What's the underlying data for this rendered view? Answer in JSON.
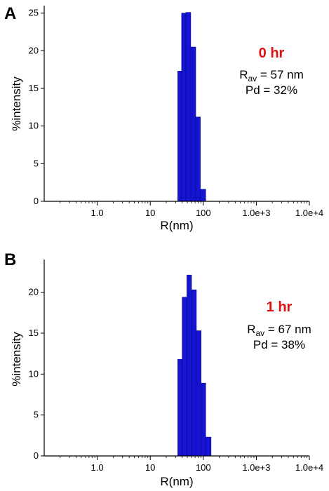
{
  "chart_data": [
    {
      "type": "bar",
      "panel_label": "A",
      "xlabel": "R(nm)",
      "ylabel": "%intensity",
      "x_scale": "log",
      "xlim": [
        0.1,
        10000
      ],
      "ylim": [
        0,
        26
      ],
      "x_tick_values": [
        1,
        10,
        100,
        1000,
        10000
      ],
      "x_tick_labels": [
        "1.0",
        "10",
        "100",
        "1.0e+3",
        "1.0e+4"
      ],
      "y_ticks": [
        0,
        5,
        10,
        15,
        20,
        25
      ],
      "bar_color": "#1414d2",
      "annotation": {
        "time": "0 hr",
        "time_color": "#dd1111",
        "rav_label": "R",
        "rav_sub": "av",
        "rav_value": " = 57 nm",
        "pd": "Pd = 32%"
      },
      "bars": [
        {
          "x_from": 33,
          "x_to": 39,
          "value": 17.3
        },
        {
          "x_from": 39,
          "x_to": 47,
          "value": 25.0
        },
        {
          "x_from": 47,
          "x_to": 58,
          "value": 25.1
        },
        {
          "x_from": 58,
          "x_to": 72,
          "value": 20.5
        },
        {
          "x_from": 72,
          "x_to": 88,
          "value": 11.2
        },
        {
          "x_from": 88,
          "x_to": 111,
          "value": 1.6
        }
      ]
    },
    {
      "type": "bar",
      "panel_label": "B",
      "xlabel": "R(nm)",
      "ylabel": "%intensity",
      "x_scale": "log",
      "xlim": [
        0.1,
        10000
      ],
      "ylim": [
        0,
        24
      ],
      "x_tick_values": [
        1,
        10,
        100,
        1000,
        10000
      ],
      "x_tick_labels": [
        "1.0",
        "10",
        "100",
        "1.0e+3",
        "1.0e+4"
      ],
      "y_ticks": [
        0,
        5,
        10,
        15,
        20
      ],
      "bar_color": "#1414d2",
      "annotation": {
        "time": "1 hr",
        "time_color": "#dd1111",
        "rav_label": "R",
        "rav_sub": "av",
        "rav_value": " = 67 nm",
        "pd": "Pd = 38%"
      },
      "bars": [
        {
          "x_from": 33,
          "x_to": 40,
          "value": 11.8
        },
        {
          "x_from": 40,
          "x_to": 49,
          "value": 19.4
        },
        {
          "x_from": 49,
          "x_to": 60,
          "value": 22.1
        },
        {
          "x_from": 60,
          "x_to": 74,
          "value": 20.3
        },
        {
          "x_from": 74,
          "x_to": 91,
          "value": 15.3
        },
        {
          "x_from": 91,
          "x_to": 111,
          "value": 8.9
        },
        {
          "x_from": 111,
          "x_to": 140,
          "value": 2.3
        }
      ]
    }
  ]
}
